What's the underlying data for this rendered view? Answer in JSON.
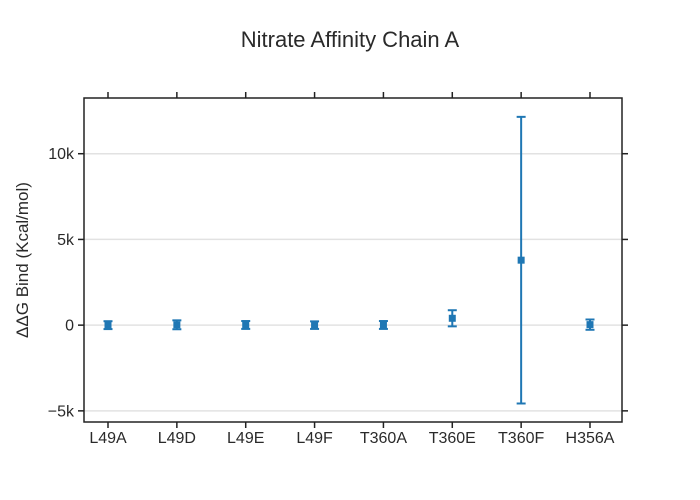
{
  "figure": {
    "title": "Nitrate Affinity Chain A"
  },
  "chart_data": {
    "type": "scatter",
    "title": "Nitrate Affinity Chain A",
    "xlabel": "",
    "ylabel": "ΔΔG Bind (Kcal/mol)",
    "categories": [
      "L49A",
      "L49D",
      "L49E",
      "L49F",
      "T360A",
      "T360E",
      "T360F",
      "H356A"
    ],
    "series": [
      {
        "name": "ΔΔG Bind",
        "values": [
          0,
          20,
          10,
          0,
          10,
          400,
          3790,
          30
        ],
        "errors": [
          230,
          260,
          230,
          220,
          230,
          470,
          8360,
          300
        ]
      }
    ],
    "ylim": [
      -5650,
      13250
    ],
    "yticks": [
      {
        "label": "−5k",
        "value": -5000
      },
      {
        "label": "0",
        "value": 0
      },
      {
        "label": "5k",
        "value": 5000
      },
      {
        "label": "10k",
        "value": 10000
      }
    ],
    "grid": "horizontal-only",
    "legend_position": "none",
    "marker_shape": "square",
    "axes_mirrored_ticks": true,
    "colors": {
      "marker": "#1f77b4",
      "error_bar": "#1f77b4",
      "axis": "#222222",
      "grid": "#e2e2e2",
      "text": "#2a2a2a",
      "background": "#ffffff"
    }
  }
}
